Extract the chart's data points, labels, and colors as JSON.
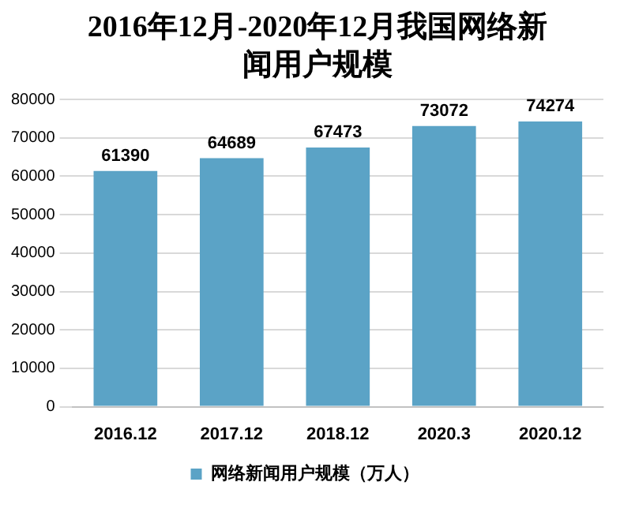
{
  "chart_data": {
    "type": "bar",
    "title": "2016年12月-2020年12月我国网络新闻用户规模",
    "categories": [
      "2016.12",
      "2017.12",
      "2018.12",
      "2020.3",
      "2020.12"
    ],
    "series": [
      {
        "name": "网络新闻用户规模（万人）",
        "color": "#5ba3c6",
        "values": [
          61390,
          64689,
          67473,
          73072,
          74274
        ]
      }
    ],
    "ylim": [
      0,
      80000
    ],
    "yticks": [
      0,
      10000,
      20000,
      30000,
      40000,
      50000,
      60000,
      70000,
      80000
    ],
    "grid": "y",
    "legend": "bottom",
    "data_labels": true
  }
}
